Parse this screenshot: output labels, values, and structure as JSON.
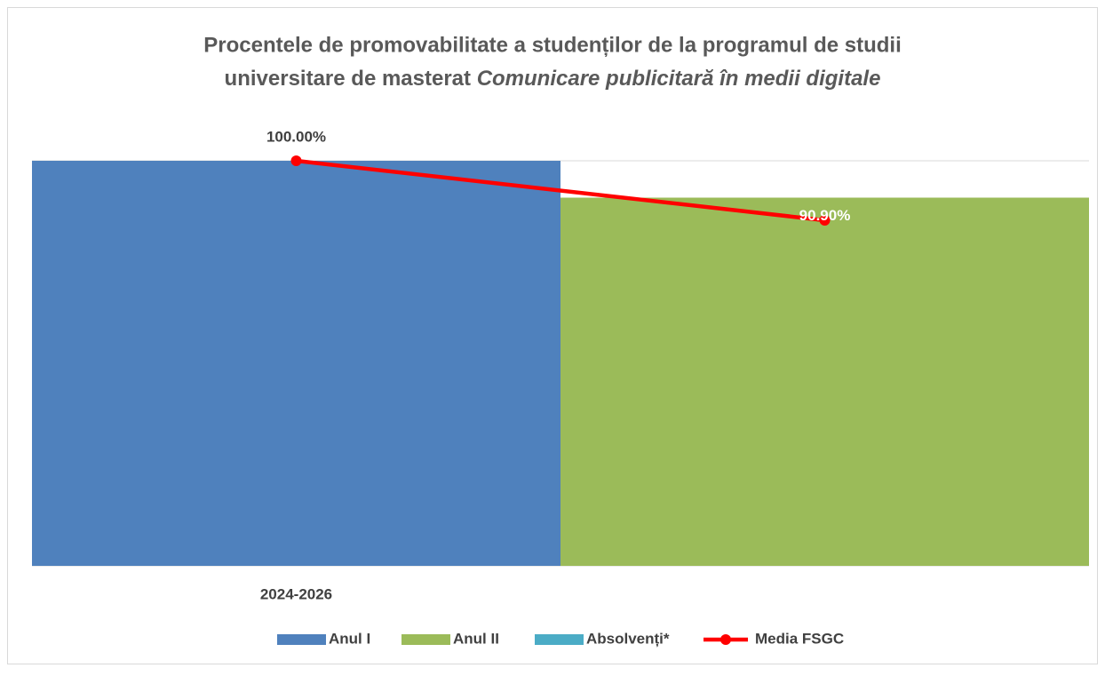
{
  "chart_data": {
    "type": "bar",
    "title": [
      "Procentele de promovabilitate a studenților de la programul de studii",
      "universitare de masterat"
    ],
    "title_emphasis": "Comunicare publicitară în medii digitale",
    "categories": [
      "2024-2026",
      null
    ],
    "ylim": [
      0,
      100
    ],
    "series": [
      {
        "name": "Anul I",
        "type": "bar",
        "color": "#4f81bd",
        "values": [
          100,
          null
        ],
        "value_labels": [
          "100.00%",
          null
        ]
      },
      {
        "name": "Anul II",
        "type": "bar",
        "color": "#9bbb59",
        "values": [
          null,
          90.9
        ],
        "value_labels": [
          null,
          "90.90%"
        ]
      },
      {
        "name": "Absolvenți*",
        "type": "bar",
        "color": "#4bacc6",
        "values": [
          null,
          null
        ]
      },
      {
        "name": "Media FSGC",
        "type": "line",
        "color": "#ff0000",
        "values": [
          100,
          85.3
        ]
      }
    ]
  }
}
